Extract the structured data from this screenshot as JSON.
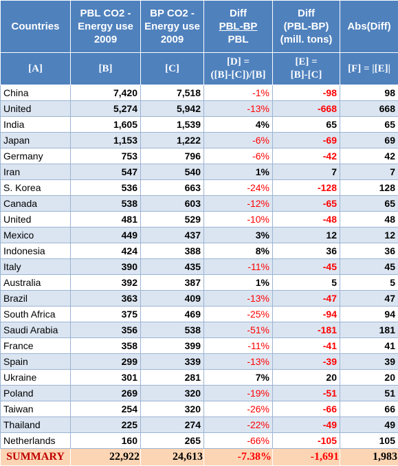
{
  "header": {
    "countries": "Countries",
    "pbl_line1": "PBL CO2 -",
    "pbl_line2": "Energy use",
    "pbl_line3": "2009",
    "bp_line1": "BP CO2 -",
    "bp_line2": "Energy use",
    "bp_line3": "2009",
    "diff_line1": "Diff",
    "diff_line2": "PBL-BP",
    "diff_line3": "PBL",
    "diffabs_line1": "Diff",
    "diffabs_line2": "(PBL-BP)",
    "diffabs_line3": "(mill. tons)",
    "abs": "Abs(Diff)",
    "ref_a": "[A]",
    "ref_b": "[B]",
    "ref_c": "[C]",
    "ref_d1": "[D] =",
    "ref_d2": "([B]-[C])/[B]",
    "ref_e1": "[E] =",
    "ref_e2": "[B]-[C]",
    "ref_f": "[F] = |[E]|"
  },
  "rows": [
    {
      "country": "China",
      "pbl": "7,420",
      "bp": "7,518",
      "pct": "-1%",
      "diff": "-98",
      "abs": "98"
    },
    {
      "country": "United",
      "pbl": "5,274",
      "bp": "5,942",
      "pct": "-13%",
      "diff": "-668",
      "abs": "668"
    },
    {
      "country": "India",
      "pbl": "1,605",
      "bp": "1,539",
      "pct": "4%",
      "diff": "65",
      "abs": "65"
    },
    {
      "country": "Japan",
      "pbl": "1,153",
      "bp": "1,222",
      "pct": "-6%",
      "diff": "-69",
      "abs": "69"
    },
    {
      "country": "Germany",
      "pbl": "753",
      "bp": "796",
      "pct": "-6%",
      "diff": "-42",
      "abs": "42"
    },
    {
      "country": "Iran",
      "pbl": "547",
      "bp": "540",
      "pct": "1%",
      "diff": "7",
      "abs": "7"
    },
    {
      "country": "S. Korea",
      "pbl": "536",
      "bp": "663",
      "pct": "-24%",
      "diff": "-128",
      "abs": "128"
    },
    {
      "country": "Canada",
      "pbl": "538",
      "bp": "603",
      "pct": "-12%",
      "diff": "-65",
      "abs": "65"
    },
    {
      "country": "United",
      "pbl": "481",
      "bp": "529",
      "pct": "-10%",
      "diff": "-48",
      "abs": "48"
    },
    {
      "country": "Mexico",
      "pbl": "449",
      "bp": "437",
      "pct": "3%",
      "diff": "12",
      "abs": "12"
    },
    {
      "country": "Indonesia",
      "pbl": "424",
      "bp": "388",
      "pct": "8%",
      "diff": "36",
      "abs": "36"
    },
    {
      "country": "Italy",
      "pbl": "390",
      "bp": "435",
      "pct": "-11%",
      "diff": "-45",
      "abs": "45"
    },
    {
      "country": "Australia",
      "pbl": "392",
      "bp": "387",
      "pct": "1%",
      "diff": "5",
      "abs": "5"
    },
    {
      "country": "Brazil",
      "pbl": "363",
      "bp": "409",
      "pct": "-13%",
      "diff": "-47",
      "abs": "47"
    },
    {
      "country": "South Africa",
      "pbl": "375",
      "bp": "469",
      "pct": "-25%",
      "diff": "-94",
      "abs": "94"
    },
    {
      "country": "Saudi Arabia",
      "pbl": "356",
      "bp": "538",
      "pct": "-51%",
      "diff": "-181",
      "abs": "181"
    },
    {
      "country": "France",
      "pbl": "358",
      "bp": "399",
      "pct": "-11%",
      "diff": "-41",
      "abs": "41"
    },
    {
      "country": "Spain",
      "pbl": "299",
      "bp": "339",
      "pct": "-13%",
      "diff": "-39",
      "abs": "39"
    },
    {
      "country": "Ukraine",
      "pbl": "301",
      "bp": "281",
      "pct": "7%",
      "diff": "20",
      "abs": "20"
    },
    {
      "country": "Poland",
      "pbl": "269",
      "bp": "320",
      "pct": "-19%",
      "diff": "-51",
      "abs": "51"
    },
    {
      "country": "Taiwan",
      "pbl": "254",
      "bp": "320",
      "pct": "-26%",
      "diff": "-66",
      "abs": "66"
    },
    {
      "country": "Thailand",
      "pbl": "225",
      "bp": "274",
      "pct": "-22%",
      "diff": "-49",
      "abs": "49"
    },
    {
      "country": "Netherlands",
      "pbl": "160",
      "bp": "265",
      "pct": "-66%",
      "diff": "-105",
      "abs": "105"
    }
  ],
  "summary": {
    "label": "SUMMARY",
    "pbl": "22,922",
    "bp": "24,613",
    "pct": "-7.38%",
    "diff": "-1,691",
    "abs": "1,983"
  },
  "colors": {
    "header_bg": "#4f81bd",
    "band_bg": "#dbe5f1",
    "summary_bg": "#fcd5b4",
    "negative_text": "#ff0000",
    "summary_label_text": "#c00000"
  }
}
